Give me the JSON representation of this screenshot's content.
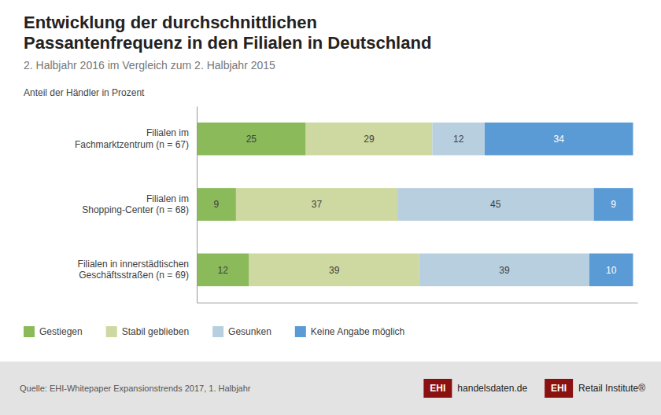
{
  "chart_data": {
    "type": "bar",
    "orientation": "horizontal",
    "stacked": true,
    "data_labels": true,
    "tick_labels": "y",
    "legend": "bottom",
    "title": "Entwicklung der durchschnittlichen\nPassantenfrequenz in den Filialen in Deutschland",
    "subtitle": "2. Halbjahr 2016 im Vergleich zum 2. Halbjahr 2015",
    "xlabel": "Anteil der Händler in Prozent",
    "categories": [
      "Filialen im\nFachmarktzentrum (n = 67)",
      "Filialen im\nShopping-Center (n = 68)",
      "Filialen in innerstädtischen\nGeschäftsstraßen (n = 69)"
    ],
    "series": [
      {
        "name": "Gestiegen",
        "color": "#8aba5a",
        "values": [
          25,
          9,
          12
        ]
      },
      {
        "name": "Stabil geblieben",
        "color": "#cdd9a0",
        "values": [
          29,
          37,
          39
        ]
      },
      {
        "name": "Gesunken",
        "color": "#b8cfe0",
        "values": [
          12,
          45,
          39
        ]
      },
      {
        "name": "Keine Angabe möglich",
        "color": "#5b9bd5",
        "values": [
          34,
          9,
          10
        ]
      }
    ],
    "xlim": [
      0,
      101
    ],
    "source": "Quelle: EHI-Whitepaper Expansionstrends 2017, 1. Halbjahr",
    "annotations": [
      "EHI",
      "handelsdaten.de",
      "EHI",
      "Retail Institute®"
    ]
  }
}
